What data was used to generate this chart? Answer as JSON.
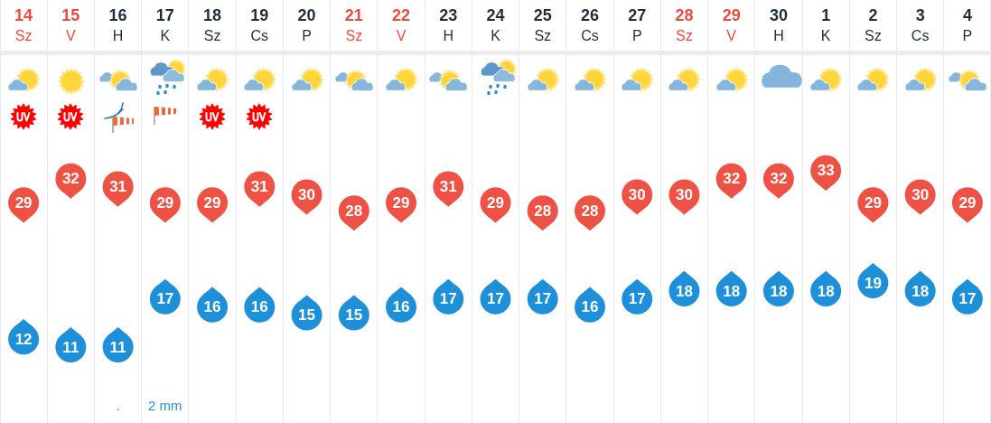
{
  "chart_data": {
    "type": "scatter",
    "categories": [
      "14\nSz",
      "15\nV",
      "16\nH",
      "17\nK",
      "18\nSz",
      "19\nCs",
      "20\nP",
      "21\nSz",
      "22\nV",
      "23\nH",
      "24\nK",
      "25\nSz",
      "26\nCs",
      "27\nP",
      "28\nSz",
      "29\nV",
      "30\nH",
      "1\nK",
      "2\nSz",
      "3\nCs",
      "4\nP"
    ],
    "series": [
      {
        "color": "#ee5245",
        "values": [
          29,
          32,
          31,
          29,
          29,
          31,
          30,
          28,
          29,
          31,
          29,
          28,
          28,
          30,
          30,
          32,
          32,
          33,
          29,
          30,
          29
        ]
      },
      {
        "color": "#1e8fd9",
        "values": [
          12,
          11,
          11,
          17,
          16,
          16,
          15,
          15,
          16,
          17,
          17,
          17,
          16,
          17,
          18,
          18,
          18,
          18,
          19,
          18,
          17
        ]
      }
    ],
    "marker": "circle",
    "data_labels": true,
    "grid": "x",
    "annotations": [
      ".",
      "2 mm"
    ]
  }
}
